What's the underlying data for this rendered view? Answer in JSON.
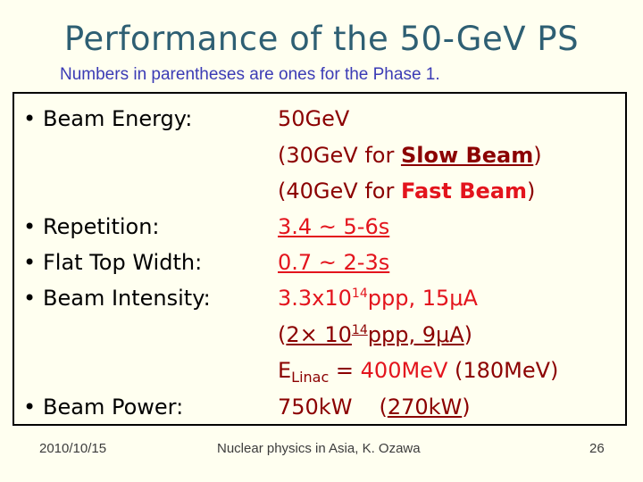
{
  "title": "Performance of the 50-GeV PS",
  "subtitle": "Numbers in parentheses are ones for the Phase 1.",
  "bullets": {
    "beam_energy": "Beam Energy:",
    "repetition": "Repetition:",
    "flat_top": "Flat Top Width:",
    "intensity": "Beam Intensity:",
    "power": "Beam Power:"
  },
  "values": {
    "energy": "50GeV",
    "slow_a": "(30GeV for ",
    "slow_b": "Slow Beam",
    "slow_c": ")",
    "fast_a": "(40GeV for ",
    "fast_b": "Fast Beam",
    "fast_c": ")",
    "rep": "3.4 ~ 5-6s",
    "flat": "0.7 ~ 2-3s",
    "int1_a": "3.3x10",
    "int1_exp": "14",
    "int1_b": "ppp, 15μA",
    "int2_a": "(",
    "int2_b": "2× 10",
    "int2_exp": "14",
    "int2_c": "ppp, 9μA",
    "int2_d": ")",
    "linac_e": "E",
    "linac_sub": "Linac",
    "linac_eq": " = ",
    "linac_val": "400MeV",
    "linac_phase1": " (180MeV)",
    "power_val": "750kW",
    "power_phase1_open": "(",
    "power_phase1": "270kW",
    "power_phase1_close": ")"
  },
  "footer": {
    "date": "2010/10/15",
    "center": "Nuclear physics in Asia, K. Ozawa",
    "page": "26"
  },
  "colors": {
    "title": "#2e5f73",
    "subtitle": "#3b3bb5",
    "maroon": "#8b0000",
    "red": "#e3141d",
    "purple": "#8b008b",
    "background": "#fffff0"
  }
}
